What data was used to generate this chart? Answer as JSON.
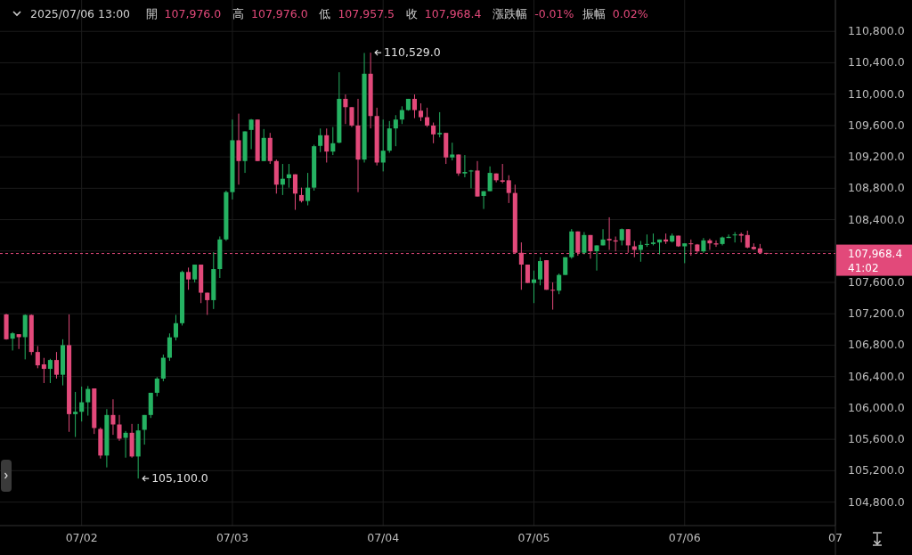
{
  "chart_data": {
    "type": "candlestick",
    "x": [
      "2025-07-01T12:00",
      "2025-07-01T13:00",
      "2025-07-01T14:00",
      "2025-07-01T15:00",
      "2025-07-01T16:00",
      "2025-07-01T17:00",
      "2025-07-01T18:00",
      "2025-07-01T19:00",
      "2025-07-01T20:00",
      "2025-07-01T21:00",
      "2025-07-01T22:00",
      "2025-07-01T23:00",
      "2025-07-02T00:00",
      "2025-07-02T01:00",
      "2025-07-02T02:00",
      "2025-07-02T03:00",
      "2025-07-02T04:00",
      "2025-07-02T05:00",
      "2025-07-02T06:00",
      "2025-07-02T07:00",
      "2025-07-02T08:00",
      "2025-07-02T09:00",
      "2025-07-02T10:00",
      "2025-07-02T11:00",
      "2025-07-02T12:00",
      "2025-07-02T13:00",
      "2025-07-02T14:00",
      "2025-07-02T15:00",
      "2025-07-02T16:00",
      "2025-07-02T17:00",
      "2025-07-02T18:00",
      "2025-07-02T19:00",
      "2025-07-02T20:00",
      "2025-07-02T21:00",
      "2025-07-02T22:00",
      "2025-07-02T23:00",
      "2025-07-03T00:00",
      "2025-07-03T01:00",
      "2025-07-03T02:00",
      "2025-07-03T03:00",
      "2025-07-03T04:00",
      "2025-07-03T05:00",
      "2025-07-03T06:00",
      "2025-07-03T07:00",
      "2025-07-03T08:00",
      "2025-07-03T09:00",
      "2025-07-03T10:00",
      "2025-07-03T11:00",
      "2025-07-03T12:00",
      "2025-07-03T13:00",
      "2025-07-03T14:00",
      "2025-07-03T15:00",
      "2025-07-03T16:00",
      "2025-07-03T17:00",
      "2025-07-03T18:00",
      "2025-07-03T19:00",
      "2025-07-03T20:00",
      "2025-07-03T21:00",
      "2025-07-03T22:00",
      "2025-07-03T23:00",
      "2025-07-04T00:00",
      "2025-07-04T01:00",
      "2025-07-04T02:00",
      "2025-07-04T03:00",
      "2025-07-04T04:00",
      "2025-07-04T05:00",
      "2025-07-04T06:00",
      "2025-07-04T07:00",
      "2025-07-04T08:00",
      "2025-07-04T09:00",
      "2025-07-04T10:00",
      "2025-07-04T11:00",
      "2025-07-04T12:00",
      "2025-07-04T13:00",
      "2025-07-04T14:00",
      "2025-07-04T15:00",
      "2025-07-04T16:00",
      "2025-07-04T17:00",
      "2025-07-04T18:00",
      "2025-07-04T19:00",
      "2025-07-04T20:00",
      "2025-07-04T21:00",
      "2025-07-04T22:00",
      "2025-07-04T23:00",
      "2025-07-05T00:00",
      "2025-07-05T01:00",
      "2025-07-05T02:00",
      "2025-07-05T03:00",
      "2025-07-05T04:00",
      "2025-07-05T05:00",
      "2025-07-05T06:00",
      "2025-07-05T07:00",
      "2025-07-05T08:00",
      "2025-07-05T09:00",
      "2025-07-05T10:00",
      "2025-07-05T11:00",
      "2025-07-05T12:00",
      "2025-07-05T13:00",
      "2025-07-05T14:00",
      "2025-07-05T15:00",
      "2025-07-05T16:00",
      "2025-07-05T17:00",
      "2025-07-05T18:00",
      "2025-07-05T19:00",
      "2025-07-05T20:00",
      "2025-07-05T21:00",
      "2025-07-05T22:00",
      "2025-07-05T23:00",
      "2025-07-06T00:00",
      "2025-07-06T01:00",
      "2025-07-06T02:00",
      "2025-07-06T03:00",
      "2025-07-06T04:00",
      "2025-07-06T05:00",
      "2025-07-06T06:00",
      "2025-07-06T07:00",
      "2025-07-06T08:00",
      "2025-07-06T09:00",
      "2025-07-06T10:00",
      "2025-07-06T11:00",
      "2025-07-06T12:00",
      "2025-07-06T13:00"
    ],
    "ohlc": [
      [
        107192,
        107200,
        106870,
        106875
      ],
      [
        106883,
        106966,
        106732,
        106951
      ],
      [
        106940,
        106940,
        106751,
        106902
      ],
      [
        106902,
        107192,
        106619,
        107185
      ],
      [
        107185,
        107192,
        106675,
        106713
      ],
      [
        106713,
        106789,
        106506,
        106543
      ],
      [
        106555,
        106638,
        106317,
        106498
      ],
      [
        106498,
        106626,
        106317,
        106611
      ],
      [
        106611,
        106713,
        106374,
        106423
      ],
      [
        106423,
        106875,
        106287,
        106800
      ],
      [
        106800,
        107192,
        105695,
        105921
      ],
      [
        105921,
        106204,
        105630,
        105951
      ],
      [
        105951,
        106272,
        105827,
        106072
      ],
      [
        106072,
        106279,
        105902,
        106242
      ],
      [
        106249,
        106249,
        105668,
        105744
      ],
      [
        105732,
        105751,
        105355,
        105393
      ],
      [
        105393,
        105985,
        105242,
        105910
      ],
      [
        105910,
        106110,
        105657,
        105789
      ],
      [
        105789,
        105910,
        105581,
        105608
      ],
      [
        105619,
        105706,
        105366,
        105683
      ],
      [
        105683,
        105796,
        105366,
        105381
      ],
      [
        105381,
        105796,
        105100,
        105713
      ],
      [
        105721,
        105910,
        105532,
        105910
      ],
      [
        105910,
        106193,
        105872,
        106193
      ],
      [
        106193,
        106393,
        106147,
        106374
      ],
      [
        106374,
        106680,
        106340,
        106640
      ],
      [
        106640,
        106950,
        106600,
        106900
      ],
      [
        106900,
        107186,
        106860,
        107080
      ],
      [
        107080,
        107750,
        107050,
        107733
      ],
      [
        107733,
        107789,
        107506,
        107638
      ],
      [
        107638,
        107827,
        107600,
        107827
      ],
      [
        107827,
        107827,
        107336,
        107469
      ],
      [
        107469,
        107469,
        107186,
        107374
      ],
      [
        107374,
        107985,
        107261,
        107770
      ],
      [
        107770,
        108186,
        107657,
        108148
      ],
      [
        108148,
        108770,
        108129,
        108751
      ],
      [
        108751,
        109676,
        108657,
        109412
      ],
      [
        109412,
        109751,
        108846,
        109147
      ],
      [
        109147,
        109525,
        108996,
        109525
      ],
      [
        109544,
        109683,
        109298,
        109676
      ],
      [
        109676,
        109676,
        109147,
        109147
      ],
      [
        109147,
        109555,
        109147,
        109442
      ],
      [
        109442,
        109506,
        109110,
        109147
      ],
      [
        109147,
        109166,
        108732,
        108846
      ],
      [
        108846,
        109110,
        108714,
        108921
      ],
      [
        108929,
        109110,
        108808,
        108978
      ],
      [
        108978,
        108978,
        108525,
        108732
      ],
      [
        108714,
        108808,
        108619,
        108638
      ],
      [
        108638,
        108996,
        108582,
        108808
      ],
      [
        108808,
        109355,
        108770,
        109336
      ],
      [
        109340,
        109562,
        109261,
        109476
      ],
      [
        109476,
        109562,
        109128,
        109268
      ],
      [
        109268,
        109581,
        109223,
        109374
      ],
      [
        109381,
        110279,
        109374,
        109940
      ],
      [
        109940,
        109996,
        109619,
        109834
      ],
      [
        109834,
        109834,
        109581,
        109600
      ],
      [
        109600,
        109940,
        108751,
        109166
      ],
      [
        109166,
        110525,
        109128,
        110260
      ],
      [
        110260,
        110529,
        109563,
        109721
      ],
      [
        109721,
        109827,
        109091,
        109128
      ],
      [
        109128,
        109676,
        109015,
        109279
      ],
      [
        109279,
        109657,
        109253,
        109563
      ],
      [
        109563,
        109732,
        109336,
        109676
      ],
      [
        109676,
        109845,
        109619,
        109797
      ],
      [
        109797,
        109940,
        109789,
        109940
      ],
      [
        109940,
        109996,
        109694,
        109797
      ],
      [
        109789,
        109883,
        109657,
        109706
      ],
      [
        109706,
        109827,
        109581,
        109600
      ],
      [
        109600,
        109638,
        109374,
        109487
      ],
      [
        109487,
        109770,
        109449,
        109506
      ],
      [
        109506,
        109506,
        109110,
        109193
      ],
      [
        109193,
        109381,
        109155,
        109230
      ],
      [
        109230,
        109230,
        108959,
        108989
      ],
      [
        108989,
        109223,
        108940,
        109008
      ],
      [
        109015,
        109034,
        108800,
        109026
      ],
      [
        109026,
        109147,
        108695,
        108695
      ],
      [
        108702,
        108763,
        108536,
        108763
      ],
      [
        108763,
        109079,
        108763,
        108996
      ],
      [
        108989,
        108989,
        108876,
        108902
      ],
      [
        108902,
        109110,
        108864,
        108883
      ],
      [
        108902,
        108966,
        108612,
        108740
      ],
      [
        108740,
        108846,
        107978,
        107978
      ],
      [
        107978,
        108110,
        107506,
        107827
      ],
      [
        107827,
        107827,
        107593,
        107593
      ],
      [
        107593,
        107751,
        107336,
        107638
      ],
      [
        107638,
        107921,
        107563,
        107872
      ],
      [
        107883,
        107883,
        107506,
        107506
      ],
      [
        107506,
        107600,
        107253,
        107495
      ],
      [
        107495,
        107713,
        107450,
        107695
      ],
      [
        107695,
        107921,
        107695,
        107921
      ],
      [
        107921,
        108280,
        107902,
        108250
      ],
      [
        108250,
        108250,
        107940,
        107978
      ],
      [
        107978,
        108242,
        107959,
        108204
      ],
      [
        108204,
        108204,
        107902,
        107997
      ],
      [
        107997,
        108072,
        107751,
        108072
      ],
      [
        108072,
        108279,
        108072,
        108147
      ],
      [
        108155,
        108430,
        108015,
        108136
      ],
      [
        108136,
        108185,
        107996,
        108121
      ],
      [
        108136,
        108287,
        108072,
        108279
      ],
      [
        108279,
        108279,
        107977,
        108072
      ],
      [
        108060,
        108128,
        107921,
        108015
      ],
      [
        108015,
        108128,
        107864,
        108079
      ],
      [
        108079,
        108211,
        108053,
        108090
      ],
      [
        108090,
        108223,
        108072,
        108109
      ],
      [
        108109,
        108147,
        107958,
        108147
      ],
      [
        108147,
        108223,
        108090,
        108121
      ],
      [
        108121,
        108223,
        108109,
        108196
      ],
      [
        108196,
        108196,
        108053,
        108060
      ],
      [
        108060,
        108098,
        107845,
        108098
      ],
      [
        108098,
        108147,
        107940,
        108090
      ],
      [
        108083,
        108090,
        107977,
        107996
      ],
      [
        107996,
        108166,
        107977,
        108136
      ],
      [
        108136,
        108158,
        108015,
        108098
      ],
      [
        108098,
        108136,
        108053,
        108083
      ],
      [
        108090,
        108185,
        108072,
        108173
      ],
      [
        108166,
        108211,
        108166,
        108181
      ],
      [
        108204,
        108241,
        108109,
        108211
      ],
      [
        108215,
        108235,
        108109,
        108196
      ],
      [
        108204,
        108260,
        108034,
        108045
      ],
      [
        108053,
        108098,
        108015,
        108023
      ],
      [
        108034,
        108090,
        107970,
        107977
      ],
      [
        107976.0,
        107976.0,
        107957.5,
        107968.4
      ]
    ],
    "colors": [
      "#e2497a",
      "#25b262",
      "#e2497a",
      "#25b262",
      "#e2497a",
      "#e2497a",
      "#e2497a",
      "#25b262",
      "#e2497a",
      "#25b262",
      "#e2497a",
      "#25b262",
      "#25b262",
      "#25b262",
      "#e2497a",
      "#e2497a",
      "#25b262",
      "#e2497a",
      "#e2497a",
      "#25b262",
      "#e2497a",
      "#25b262",
      "#25b262",
      "#25b262",
      "#25b262",
      "#25b262",
      "#25b262",
      "#25b262",
      "#25b262",
      "#e2497a",
      "#25b262",
      "#e2497a",
      "#e2497a",
      "#25b262",
      "#25b262",
      "#25b262",
      "#25b262",
      "#e2497a",
      "#25b262",
      "#25b262",
      "#e2497a",
      "#25b262",
      "#e2497a",
      "#e2497a",
      "#25b262",
      "#25b262",
      "#e2497a",
      "#e2497a",
      "#25b262",
      "#25b262",
      "#25b262",
      "#e2497a",
      "#25b262",
      "#25b262",
      "#e2497a",
      "#e2497a",
      "#e2497a",
      "#25b262",
      "#e2497a",
      "#e2497a",
      "#25b262",
      "#25b262",
      "#25b262",
      "#25b262",
      "#25b262",
      "#e2497a",
      "#e2497a",
      "#e2497a",
      "#e2497a",
      "#25b262",
      "#e2497a",
      "#25b262",
      "#e2497a",
      "#25b262",
      "#25b262",
      "#e2497a",
      "#25b262",
      "#25b262",
      "#e2497a",
      "#e2497a",
      "#e2497a",
      "#e2497a",
      "#e2497a",
      "#e2497a",
      "#25b262",
      "#25b262",
      "#e2497a",
      "#e2497a",
      "#25b262",
      "#25b262",
      "#25b262",
      "#e2497a",
      "#25b262",
      "#e2497a",
      "#25b262",
      "#25b262",
      "#e2497a",
      "#e2497a",
      "#25b262",
      "#e2497a",
      "#e2497a",
      "#25b262",
      "#25b262",
      "#25b262",
      "#25b262",
      "#e2497a",
      "#25b262",
      "#e2497a",
      "#25b262",
      "#e2497a",
      "#e2497a",
      "#25b262",
      "#e2497a",
      "#e2497a",
      "#25b262",
      "#25b262",
      "#25b262",
      "#e2497a",
      "#e2497a",
      "#e2497a",
      "#e2497a",
      "#e2497a"
    ],
    "xlim": [
      "2025-07-01T11:00",
      "2025-07-07T00:00"
    ],
    "xticks": [
      {
        "value": "2025-07-02",
        "label": "07/02"
      },
      {
        "value": "2025-07-03",
        "label": "07/03"
      },
      {
        "value": "2025-07-04",
        "label": "07/04"
      },
      {
        "value": "2025-07-05",
        "label": "07/05"
      },
      {
        "value": "2025-07-06",
        "label": "07/06"
      },
      {
        "value": "2025-07-07",
        "label": "07"
      }
    ],
    "ylim": [
      104500,
      111200
    ],
    "yticks": [
      {
        "value": 104800,
        "label": "104,800.0"
      },
      {
        "value": 105200,
        "label": "105,200.0"
      },
      {
        "value": 105600,
        "label": "105,600.0"
      },
      {
        "value": 106000,
        "label": "106,000.0"
      },
      {
        "value": 106400,
        "label": "106,400.0"
      },
      {
        "value": 106800,
        "label": "106,800.0"
      },
      {
        "value": 107200,
        "label": "107,200.0"
      },
      {
        "value": 107600,
        "label": "107,600.0"
      },
      {
        "value": 108000,
        "label": null
      },
      {
        "value": 108400,
        "label": "108,400.0"
      },
      {
        "value": 108800,
        "label": "108,800.0"
      },
      {
        "value": 109200,
        "label": "109,200.0"
      },
      {
        "value": 109600,
        "label": "109,600.0"
      },
      {
        "value": 110000,
        "label": "110,000.0"
      },
      {
        "value": 110400,
        "label": "110,400.0"
      },
      {
        "value": 110800,
        "label": "110,800.0"
      }
    ],
    "grid": true,
    "ref_lines": [
      {
        "axis": "y",
        "value": 107968.4,
        "label": "107,968.4",
        "color": "#e2497a",
        "line_style": "dashed"
      }
    ],
    "annotations": [
      "2025/07/06 13:00",
      "開",
      "107,976.0",
      "高",
      "107,976.0",
      "低",
      "107,957.5",
      "收",
      "107,968.4",
      "漲跌幅",
      "-0.01%",
      "振幅",
      "0.02%",
      "41:02",
      {
        "text": "110,529.0",
        "x": "2025-07-03T22:00",
        "y": 110529
      },
      {
        "text": "105,100.0",
        "x": "2025-07-02T09:00",
        "y": 105100
      }
    ]
  }
}
